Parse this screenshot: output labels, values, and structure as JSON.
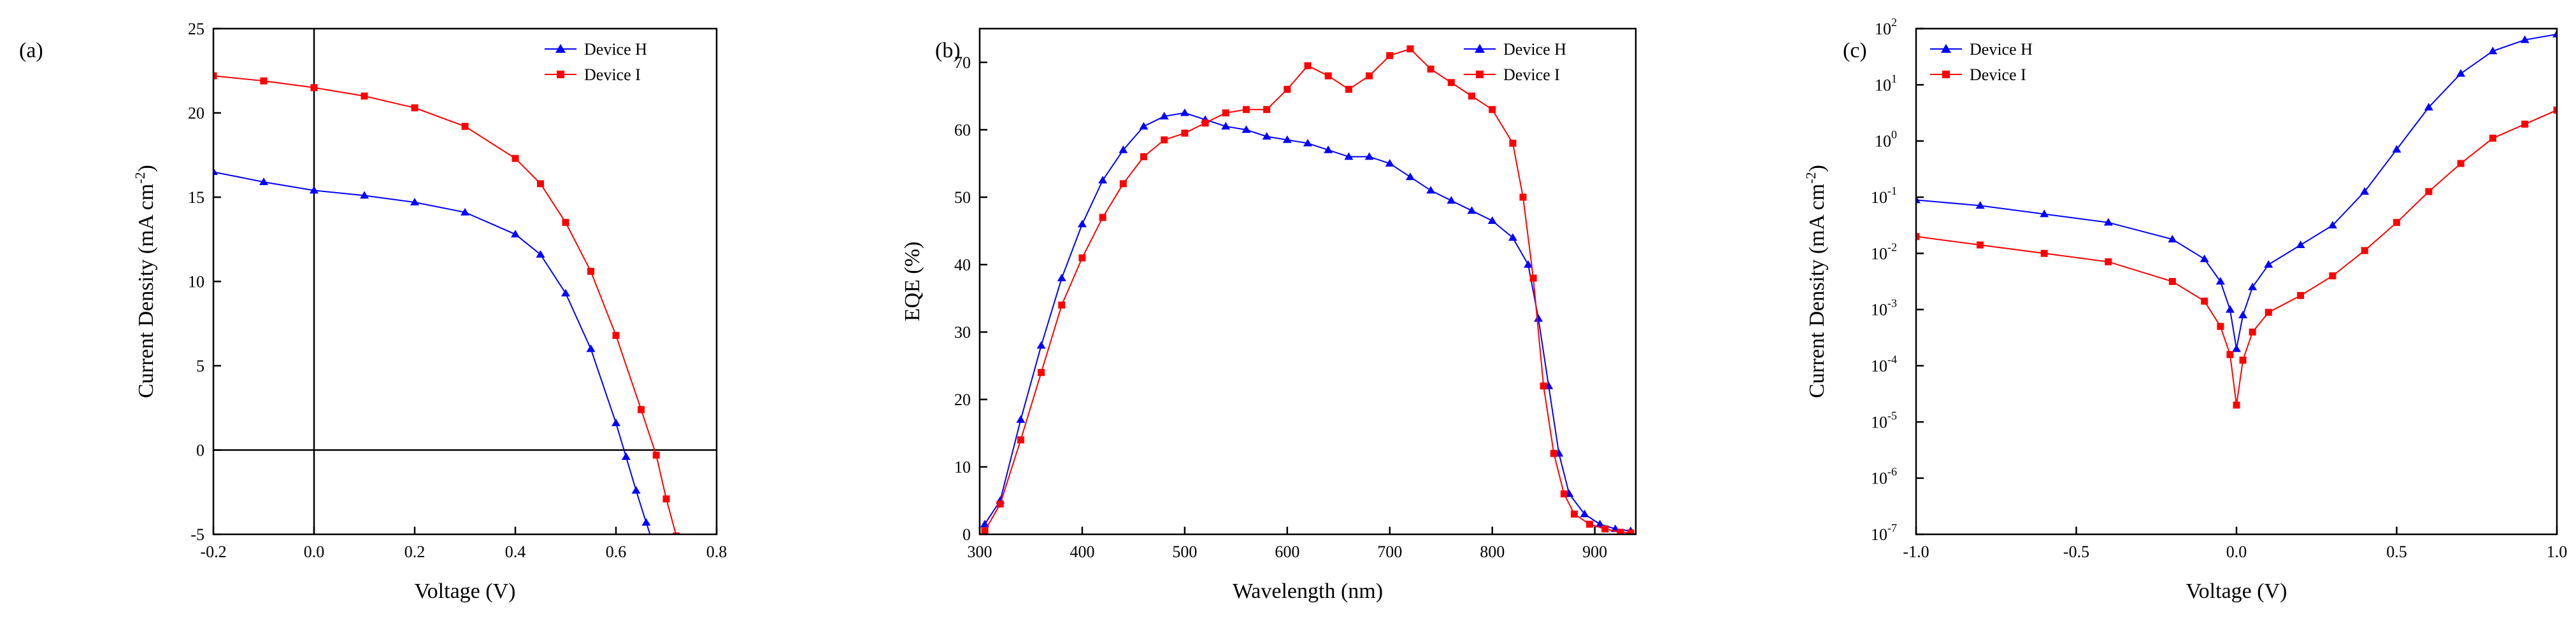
{
  "colors": {
    "device_h": "#0000ff",
    "device_i": "#ff0000",
    "axis": "#000000"
  },
  "chart_data": [
    {
      "type": "line",
      "panel_label": "(a)",
      "xlabel": "Voltage (V)",
      "ylabel_main": "Current Density (mA cm",
      "ylabel_sup": "-2",
      "ylabel_end": ")",
      "xlim": [
        -0.2,
        0.8
      ],
      "ylim": [
        -5,
        25
      ],
      "yscale": "linear",
      "xticks": [
        -0.2,
        0.0,
        0.2,
        0.4,
        0.6,
        0.8
      ],
      "xtick_labels": [
        "-0.2",
        "0.0",
        "0.2",
        "0.4",
        "0.6",
        "0.8"
      ],
      "yticks": [
        -5,
        0,
        5,
        10,
        15,
        20,
        25
      ],
      "ytick_labels": [
        "-5",
        "0",
        "5",
        "10",
        "15",
        "20",
        "25"
      ],
      "reference_lines": {
        "x": 0,
        "y": 0
      },
      "legend": [
        "Device H",
        "Device I"
      ],
      "legend_position": "top-right",
      "series": [
        {
          "name": "Device H",
          "color": "#0000ff",
          "marker": "triangle",
          "x": [
            -0.2,
            -0.1,
            0.0,
            0.1,
            0.2,
            0.3,
            0.4,
            0.45,
            0.5,
            0.55,
            0.6,
            0.62,
            0.64,
            0.66,
            0.67
          ],
          "y": [
            16.5,
            15.9,
            15.4,
            15.1,
            14.7,
            14.1,
            12.8,
            11.6,
            9.3,
            6.0,
            1.6,
            -0.4,
            -2.4,
            -4.3,
            -5.2
          ]
        },
        {
          "name": "Device I",
          "color": "#ff0000",
          "marker": "square",
          "x": [
            -0.2,
            -0.1,
            0.0,
            0.1,
            0.2,
            0.3,
            0.4,
            0.45,
            0.5,
            0.55,
            0.6,
            0.65,
            0.68,
            0.7,
            0.72
          ],
          "y": [
            22.2,
            21.9,
            21.5,
            21.0,
            20.3,
            19.2,
            17.3,
            15.8,
            13.5,
            10.6,
            6.8,
            2.4,
            -0.3,
            -2.9,
            -5.1
          ]
        }
      ]
    },
    {
      "type": "line",
      "panel_label": "(b)",
      "xlabel": "Wavelength (nm)",
      "ylabel_main": "EQE (%)",
      "ylabel_sup": "",
      "ylabel_end": "",
      "xlim": [
        300,
        940
      ],
      "ylim": [
        0,
        75
      ],
      "yscale": "linear",
      "xticks": [
        300,
        400,
        500,
        600,
        700,
        800,
        900
      ],
      "xtick_labels": [
        "300",
        "400",
        "500",
        "600",
        "700",
        "800",
        "900"
      ],
      "yticks": [
        0,
        10,
        20,
        30,
        40,
        50,
        60,
        70
      ],
      "ytick_labels": [
        "0",
        "10",
        "20",
        "30",
        "40",
        "50",
        "60",
        "70"
      ],
      "legend": [
        "Device H",
        "Device I"
      ],
      "legend_position": "top-right",
      "series": [
        {
          "name": "Device H",
          "color": "#0000ff",
          "marker": "triangle",
          "x": [
            305,
            320,
            340,
            360,
            380,
            400,
            420,
            440,
            460,
            480,
            500,
            520,
            540,
            560,
            580,
            600,
            620,
            640,
            660,
            680,
            700,
            720,
            740,
            760,
            780,
            800,
            820,
            835,
            845,
            855,
            865,
            875,
            890,
            905,
            920,
            935
          ],
          "y": [
            1.5,
            5,
            17,
            28,
            38,
            46,
            52.5,
            57,
            60.5,
            62,
            62.5,
            61.5,
            60.5,
            60,
            59,
            58.5,
            58,
            57,
            56,
            56,
            55,
            53,
            51,
            49.5,
            48,
            46.5,
            44,
            40,
            32,
            22,
            12,
            6,
            3,
            1.5,
            0.8,
            0.5
          ]
        },
        {
          "name": "Device I",
          "color": "#ff0000",
          "marker": "square",
          "x": [
            305,
            320,
            340,
            360,
            380,
            400,
            420,
            440,
            460,
            480,
            500,
            520,
            540,
            560,
            580,
            600,
            620,
            640,
            660,
            680,
            700,
            720,
            740,
            760,
            780,
            800,
            820,
            830,
            840,
            850,
            860,
            870,
            880,
            895,
            910,
            925,
            935
          ],
          "y": [
            0.5,
            4.5,
            14,
            24,
            34,
            41,
            47,
            52,
            56,
            58.5,
            59.5,
            61,
            62.5,
            63,
            63,
            66,
            69.5,
            68,
            66,
            68,
            71,
            72,
            69,
            67,
            65,
            63,
            58,
            50,
            38,
            22,
            12,
            6,
            3,
            1.5,
            0.8,
            0.3,
            0.2
          ]
        }
      ]
    },
    {
      "type": "line",
      "panel_label": "(c)",
      "xlabel": "Voltage (V)",
      "ylabel_main": "Current Density (mA cm",
      "ylabel_sup": "-2",
      "ylabel_end": ")",
      "xlim": [
        -1.0,
        1.0
      ],
      "ylim_exponent": [
        -7,
        2
      ],
      "yscale": "log",
      "xticks": [
        -1.0,
        -0.5,
        0.0,
        0.5,
        1.0
      ],
      "xtick_labels": [
        "-1.0",
        "-0.5",
        "0.0",
        "0.5",
        "1.0"
      ],
      "yticks_exponent": [
        -7,
        -6,
        -5,
        -4,
        -3,
        -2,
        -1,
        0,
        1,
        2
      ],
      "ytick_labels_base": "10",
      "legend": [
        "Device H",
        "Device I"
      ],
      "legend_position": "top-left",
      "series": [
        {
          "name": "Device H",
          "color": "#0000ff",
          "marker": "triangle",
          "x": [
            -1.0,
            -0.8,
            -0.6,
            -0.4,
            -0.2,
            -0.1,
            -0.05,
            -0.02,
            0.0,
            0.02,
            0.05,
            0.1,
            0.2,
            0.3,
            0.4,
            0.5,
            0.6,
            0.7,
            0.8,
            0.9,
            1.0
          ],
          "log10_y": [
            -1.05,
            -1.15,
            -1.3,
            -1.45,
            -1.75,
            -2.1,
            -2.5,
            -3.0,
            -3.7,
            -3.1,
            -2.6,
            -2.2,
            -1.85,
            -1.5,
            -0.9,
            -0.15,
            0.6,
            1.2,
            1.6,
            1.8,
            1.9
          ]
        },
        {
          "name": "Device I",
          "color": "#ff0000",
          "marker": "square",
          "x": [
            -1.0,
            -0.8,
            -0.6,
            -0.4,
            -0.2,
            -0.1,
            -0.05,
            -0.02,
            0.0,
            0.02,
            0.05,
            0.1,
            0.2,
            0.3,
            0.4,
            0.5,
            0.6,
            0.7,
            0.8,
            0.9,
            1.0
          ],
          "log10_y": [
            -1.7,
            -1.85,
            -2.0,
            -2.15,
            -2.5,
            -2.85,
            -3.3,
            -3.8,
            -4.7,
            -3.9,
            -3.4,
            -3.05,
            -2.75,
            -2.4,
            -1.95,
            -1.45,
            -0.9,
            -0.4,
            0.05,
            0.3,
            0.55
          ]
        }
      ]
    }
  ]
}
